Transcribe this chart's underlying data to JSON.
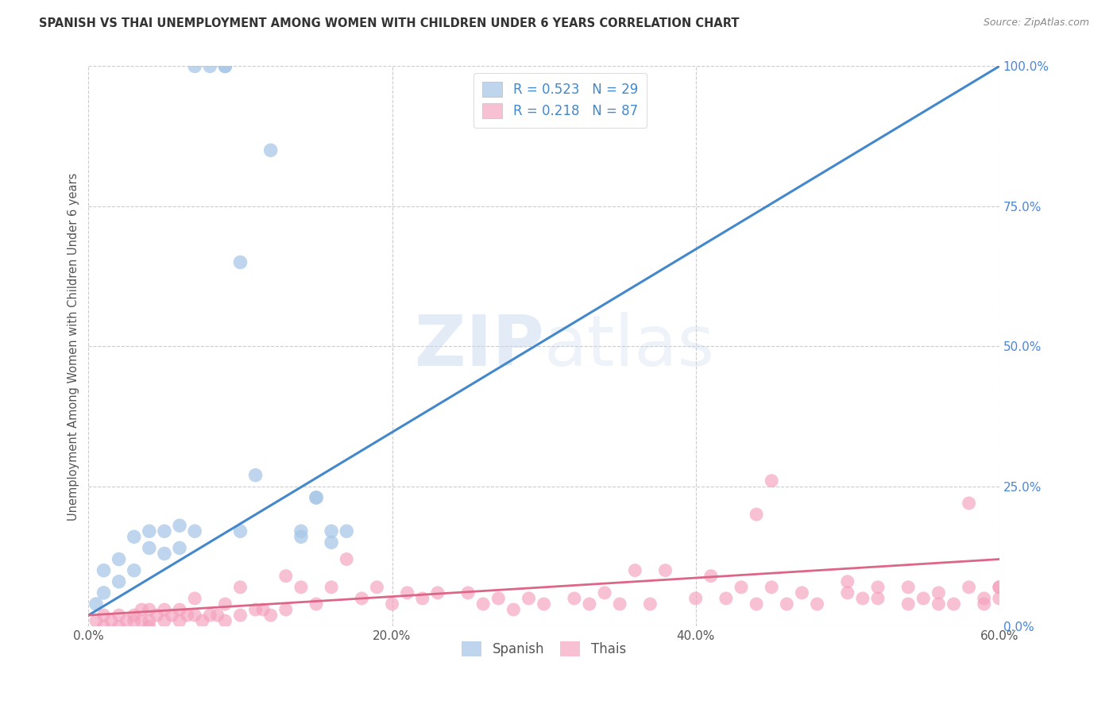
{
  "title": "SPANISH VS THAI UNEMPLOYMENT AMONG WOMEN WITH CHILDREN UNDER 6 YEARS CORRELATION CHART",
  "source": "Source: ZipAtlas.com",
  "ylabel": "Unemployment Among Women with Children Under 6 years",
  "spanish_R": 0.523,
  "spanish_N": 29,
  "thai_R": 0.218,
  "thai_N": 87,
  "spanish_color": "#a8c8e8",
  "thai_color": "#f4a0bc",
  "spanish_line_color": "#4488cc",
  "thai_line_color": "#dd6688",
  "watermark_zip": "ZIP",
  "watermark_atlas": "atlas",
  "xlim": [
    0.0,
    0.6
  ],
  "ylim": [
    0.0,
    1.0
  ],
  "x_ticks": [
    0.0,
    0.2,
    0.4,
    0.6
  ],
  "x_tick_labels": [
    "0.0%",
    "20.0%",
    "40.0%",
    "60.0%"
  ],
  "y_ticks": [
    0.0,
    0.25,
    0.5,
    0.75,
    1.0
  ],
  "y_tick_labels": [
    "0.0%",
    "25.0%",
    "50.0%",
    "75.0%",
    "100.0%"
  ],
  "spanish_x": [
    0.005,
    0.01,
    0.01,
    0.02,
    0.02,
    0.03,
    0.03,
    0.04,
    0.04,
    0.05,
    0.05,
    0.06,
    0.06,
    0.07,
    0.07,
    0.08,
    0.09,
    0.09,
    0.1,
    0.1,
    0.11,
    0.12,
    0.14,
    0.14,
    0.15,
    0.15,
    0.16,
    0.16,
    0.17
  ],
  "spanish_y": [
    0.04,
    0.06,
    0.1,
    0.08,
    0.12,
    0.1,
    0.16,
    0.14,
    0.17,
    0.13,
    0.17,
    0.14,
    0.18,
    0.17,
    1.0,
    1.0,
    1.0,
    1.0,
    0.65,
    0.17,
    0.27,
    0.85,
    0.16,
    0.17,
    0.23,
    0.23,
    0.15,
    0.17,
    0.17
  ],
  "thai_x": [
    0.005,
    0.01,
    0.01,
    0.015,
    0.02,
    0.02,
    0.025,
    0.03,
    0.03,
    0.035,
    0.035,
    0.04,
    0.04,
    0.04,
    0.045,
    0.05,
    0.05,
    0.055,
    0.06,
    0.06,
    0.065,
    0.07,
    0.07,
    0.075,
    0.08,
    0.085,
    0.09,
    0.09,
    0.1,
    0.1,
    0.11,
    0.115,
    0.12,
    0.13,
    0.13,
    0.14,
    0.15,
    0.16,
    0.17,
    0.18,
    0.19,
    0.2,
    0.21,
    0.22,
    0.23,
    0.25,
    0.26,
    0.27,
    0.28,
    0.29,
    0.3,
    0.32,
    0.33,
    0.34,
    0.35,
    0.36,
    0.37,
    0.38,
    0.4,
    0.41,
    0.42,
    0.43,
    0.44,
    0.45,
    0.46,
    0.47,
    0.48,
    0.5,
    0.51,
    0.52,
    0.54,
    0.55,
    0.56,
    0.57,
    0.58,
    0.59,
    0.59,
    0.6,
    0.6,
    0.44,
    0.45,
    0.5,
    0.52,
    0.54,
    0.56,
    0.58,
    0.6
  ],
  "thai_y": [
    0.01,
    0.0,
    0.02,
    0.01,
    0.0,
    0.02,
    0.01,
    0.01,
    0.02,
    0.01,
    0.03,
    0.0,
    0.01,
    0.03,
    0.02,
    0.01,
    0.03,
    0.02,
    0.01,
    0.03,
    0.02,
    0.02,
    0.05,
    0.01,
    0.02,
    0.02,
    0.01,
    0.04,
    0.02,
    0.07,
    0.03,
    0.03,
    0.02,
    0.03,
    0.09,
    0.07,
    0.04,
    0.07,
    0.12,
    0.05,
    0.07,
    0.04,
    0.06,
    0.05,
    0.06,
    0.06,
    0.04,
    0.05,
    0.03,
    0.05,
    0.04,
    0.05,
    0.04,
    0.06,
    0.04,
    0.1,
    0.04,
    0.1,
    0.05,
    0.09,
    0.05,
    0.07,
    0.04,
    0.07,
    0.04,
    0.06,
    0.04,
    0.06,
    0.05,
    0.07,
    0.04,
    0.05,
    0.06,
    0.04,
    0.07,
    0.04,
    0.05,
    0.05,
    0.07,
    0.2,
    0.26,
    0.08,
    0.05,
    0.07,
    0.04,
    0.22,
    0.07
  ],
  "spanish_line_x": [
    0.0,
    0.6
  ],
  "spanish_line_y": [
    0.02,
    1.0
  ],
  "thai_line_x": [
    0.0,
    0.6
  ],
  "thai_line_y": [
    0.02,
    0.12
  ]
}
